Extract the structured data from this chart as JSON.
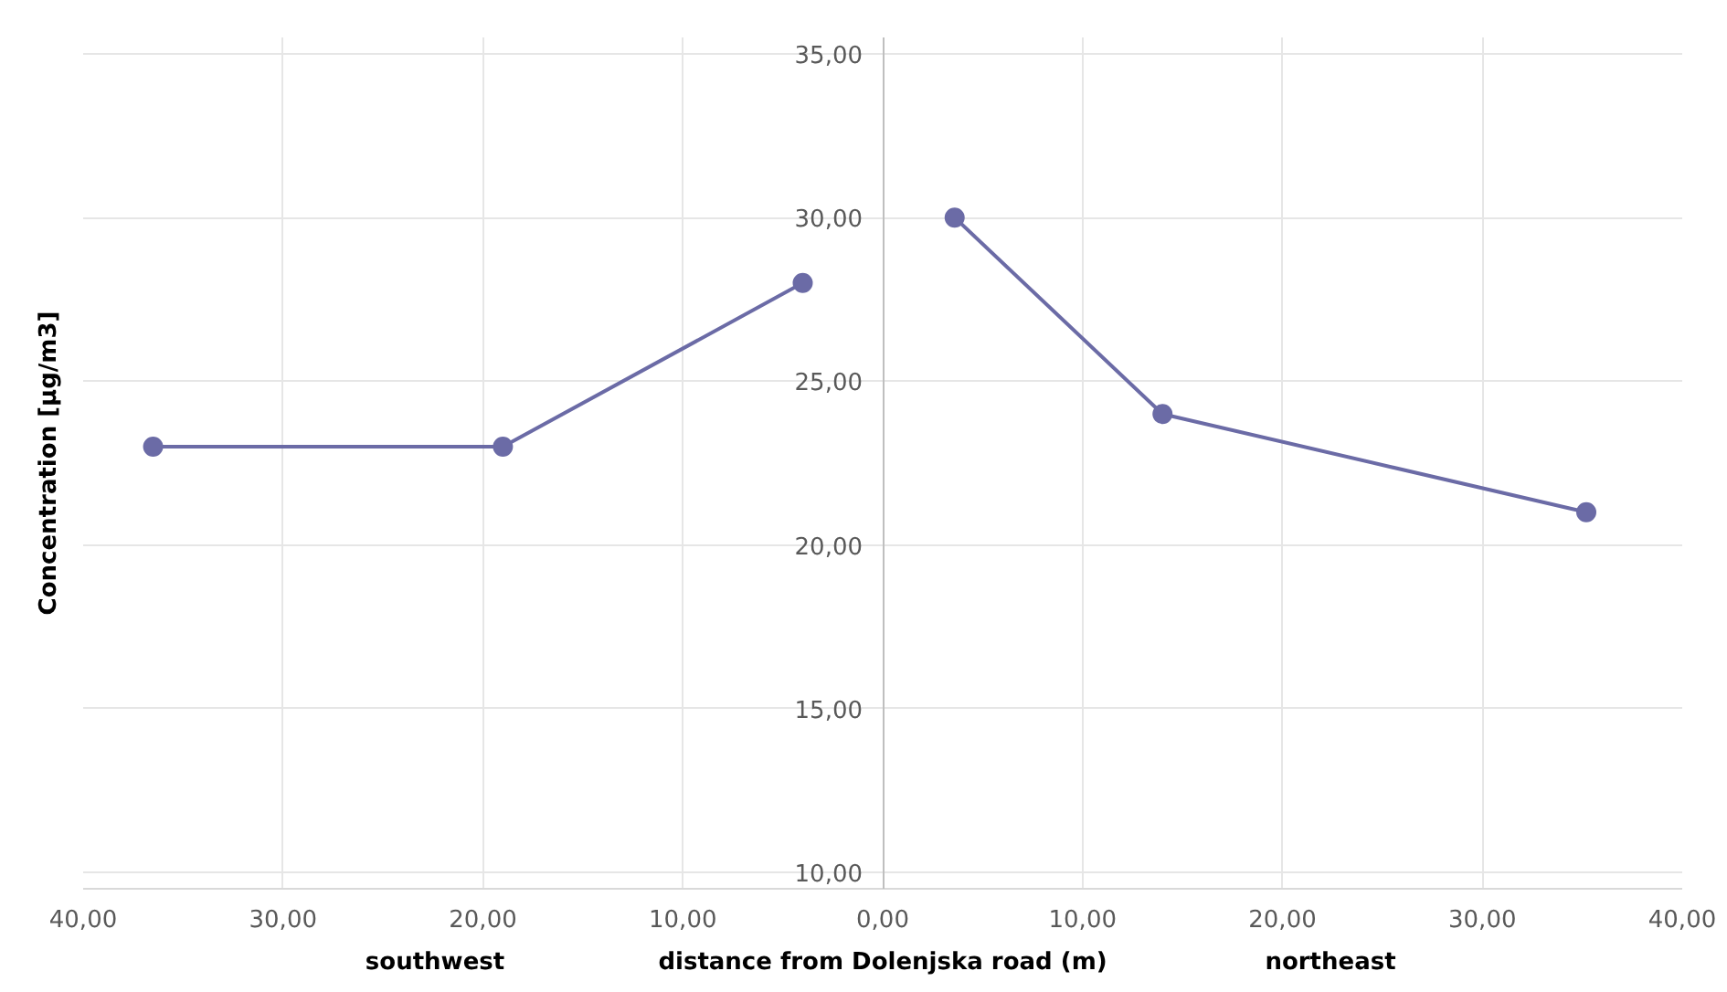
{
  "chart_data": {
    "type": "line",
    "xlabel": "distance from Dolenjska road (m)",
    "ylabel": "Concentration [µg/m3]",
    "annotations": [
      "southwest",
      "northeast"
    ],
    "series": [
      {
        "color": "#6b6ba6",
        "x": [
          -36.5,
          -19,
          -4
        ],
        "values": [
          23,
          23,
          28
        ]
      },
      {
        "color": "#6b6ba6",
        "x": [
          3.6,
          14,
          35.2
        ],
        "values": [
          30,
          24,
          21
        ]
      }
    ],
    "xlim": [
      -40,
      40
    ],
    "ylim": [
      9.5,
      35.5
    ],
    "xticks": [
      {
        "value": -40,
        "label": "40,00"
      },
      {
        "value": -30,
        "label": "30,00"
      },
      {
        "value": -20,
        "label": "20,00"
      },
      {
        "value": -10,
        "label": "10,00"
      },
      {
        "value": 0,
        "label": "0,00"
      },
      {
        "value": 10,
        "label": "10,00"
      },
      {
        "value": 20,
        "label": "20,00"
      },
      {
        "value": 30,
        "label": "30,00"
      },
      {
        "value": 40,
        "label": "40,00"
      }
    ],
    "yticks": [
      {
        "value": 10,
        "label": "10,00"
      },
      {
        "value": 15,
        "label": "15,00"
      },
      {
        "value": 20,
        "label": "20,00"
      },
      {
        "value": 25,
        "label": "25,00"
      },
      {
        "value": 30,
        "label": "30,00"
      },
      {
        "value": 35,
        "label": "35,00"
      }
    ],
    "grid": true,
    "marker": "circle",
    "line_style": "solid"
  }
}
